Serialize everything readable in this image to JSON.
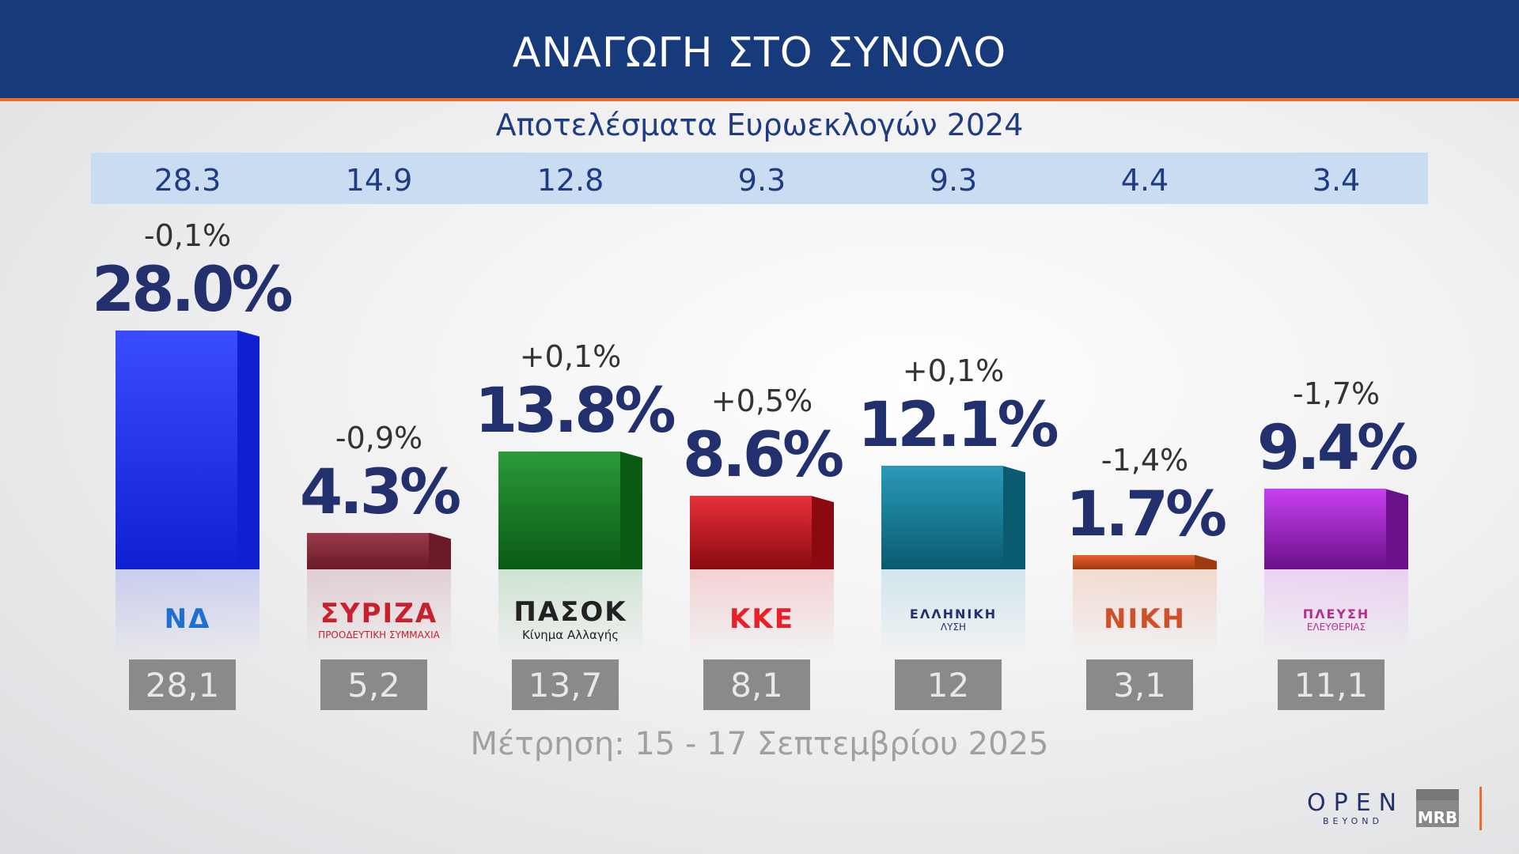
{
  "header": {
    "title": "ΑΝΑΓΩΓΗ ΣΤΟ ΣΥΝΟΛΟ"
  },
  "subtitle": "Αποτελέσματα Ευρωεκλογών 2024",
  "footer": "Μέτρηση: 15 - 17 Σεπτεμβρίου 2025",
  "branding": {
    "open": "OPEN",
    "beyond": "BEYOND",
    "mrb": "MRB"
  },
  "chart_data": {
    "type": "bar",
    "categories": [
      "ΝΔ",
      "ΣΥΡΙΖΑ",
      "ΠΑΣΟΚ",
      "ΚΚΕ",
      "ΕΛΛΗΝΙΚΗ ΛΥΣΗ",
      "ΝΙΚΗ",
      "ΠΛΕΥΣΗ ΕΛΕΥΘΕΡΙΑΣ"
    ],
    "values": [
      28.0,
      4.3,
      13.8,
      8.6,
      12.1,
      1.7,
      9.4
    ],
    "value_labels": [
      "28.0%",
      "4.3%",
      "13.8%",
      "8.6%",
      "12.1%",
      "1.7%",
      "9.4%"
    ],
    "change_labels": [
      "-0,1%",
      "-0,9%",
      "+0,1%",
      "+0,5%",
      "+0,1%",
      "-1,4%",
      "-1,7%"
    ],
    "euro_2024_labels": [
      "28.3",
      "14.9",
      "12.8",
      "9.3",
      "9.3",
      "4.4",
      "3.4"
    ],
    "previous_labels": [
      "28,1",
      "5,2",
      "13,7",
      "8,1",
      "12",
      "3,1",
      "11,1"
    ],
    "logos": [
      {
        "text": "ΝΔ",
        "sub": ""
      },
      {
        "text": "ΣΥΡΙΖΑ",
        "sub": "ΠΡΟΟΔΕΥΤΙΚΗ ΣΥΜΜΑΧΙΑ"
      },
      {
        "text": "ΠΑΣΟΚ",
        "sub": "Κίνημα Αλλαγής"
      },
      {
        "text": "ΚΚΕ",
        "sub": ""
      },
      {
        "text": "ΕΛΛΗΝΙΚΗ",
        "sub": "ΛΥΣΗ"
      },
      {
        "text": "ΝΙΚΗ",
        "sub": ""
      },
      {
        "text": "ΠΛΕΥΣΗ",
        "sub": "ΕΛΕΥΘΕΡΙΑΣ"
      }
    ],
    "colors": [
      {
        "front": "#3a4cff",
        "side": "#1020d0",
        "logo": "#1f6fd0"
      },
      {
        "front": "#9b3a4a",
        "side": "#6a1a28",
        "logo": "#c8202c"
      },
      {
        "front": "#2a9a3a",
        "side": "#0a5a14",
        "logo": "#222222"
      },
      {
        "front": "#e8303a",
        "side": "#8a0a10",
        "logo": "#e8202a"
      },
      {
        "front": "#2a9ab8",
        "side": "#0a5a70",
        "logo": "#22306e"
      },
      {
        "front": "#e8602a",
        "side": "#a03a10",
        "logo": "#d0502a"
      },
      {
        "front": "#c840f0",
        "side": "#6a108a",
        "logo": "#b0308a"
      }
    ],
    "ylim": [
      0,
      30
    ]
  }
}
